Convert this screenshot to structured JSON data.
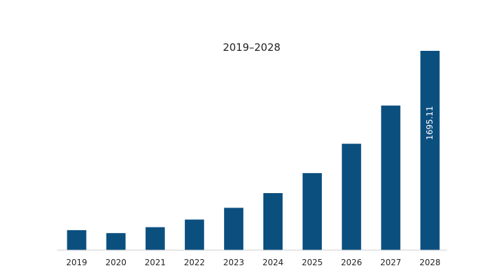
{
  "chart_data": {
    "type": "bar",
    "title": "2019–2028",
    "xlabel": "",
    "ylabel": "",
    "categories": [
      "2019",
      "2020",
      "2021",
      "2022",
      "2023",
      "2024",
      "2025",
      "2026",
      "2027",
      "2028"
    ],
    "values": [
      170,
      145,
      195,
      260,
      360,
      485,
      655,
      905,
      1230,
      1695.11
    ],
    "ylim": [
      0,
      1695.11
    ],
    "grid": false,
    "legend": "none",
    "data_labels": [
      {
        "index": 9,
        "text": "1695.11"
      }
    ],
    "colors": {
      "bar": "#0b4f7f",
      "axis": "#cfcfcf",
      "label": "#ffffff",
      "text": "#222222"
    }
  }
}
